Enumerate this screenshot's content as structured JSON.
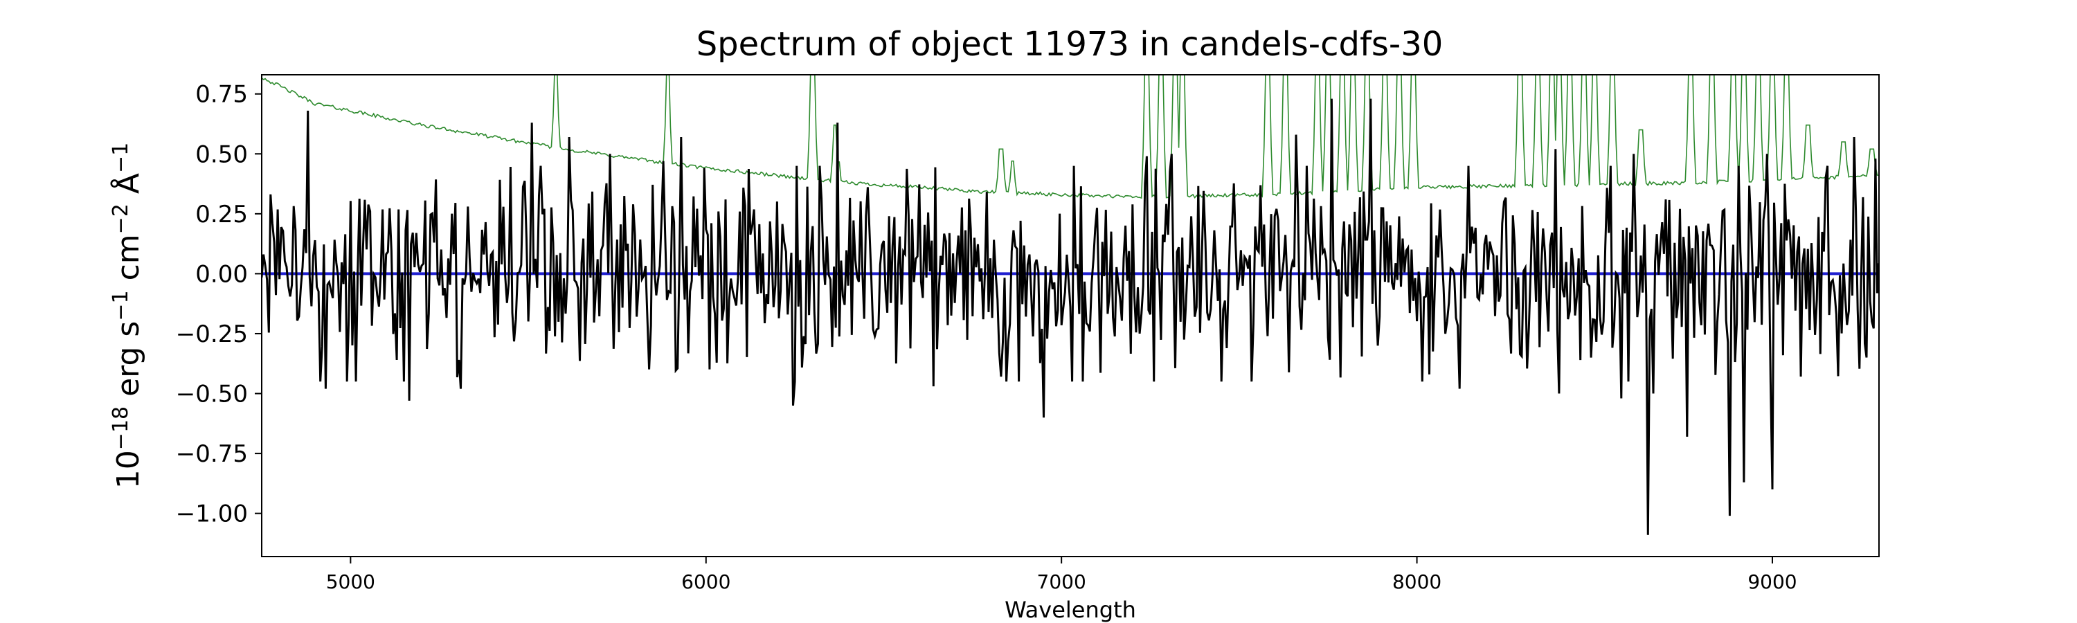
{
  "chart_data": {
    "type": "line",
    "title": "Spectrum of object 11973 in candels-cdfs-30",
    "xlabel": "Wavelength",
    "ylabel": {
      "prefix": "10",
      "exponent": "−18",
      "unit_text": " erg s",
      "unit_exp1": "−1",
      "unit_mid": " cm",
      "unit_exp2": "−2",
      "unit_end": " Å",
      "unit_exp3": "−1"
    },
    "xlim": [
      4750,
      9300
    ],
    "ylim": [
      -1.18,
      0.83
    ],
    "xticks": [
      5000,
      6000,
      7000,
      8000,
      9000
    ],
    "xtick_labels": [
      "5000",
      "6000",
      "7000",
      "8000",
      "9000"
    ],
    "yticks": [
      -1.0,
      -0.75,
      -0.5,
      -0.25,
      0.0,
      0.25,
      0.5,
      0.75
    ],
    "ytick_labels": [
      "−1.00",
      "−0.75",
      "−0.50",
      "−0.25",
      "0.00",
      "0.25",
      "0.50",
      "0.75"
    ],
    "grid": false,
    "colors": {
      "flux": "#000000",
      "error": "#2e8b2e",
      "model": "#1f1fd0"
    },
    "series": [
      {
        "role": "flux",
        "x_start": 4750,
        "x_step": 5,
        "n": 911,
        "base": 0.0,
        "noise_sigma": 0.2,
        "seed": 11973,
        "features": [
          {
            "x": 4880,
            "y": 0.68
          },
          {
            "x": 4930,
            "y": -0.48
          },
          {
            "x": 5165,
            "y": -0.53
          },
          {
            "x": 5310,
            "y": -0.48
          },
          {
            "x": 5510,
            "y": 0.63
          },
          {
            "x": 5615,
            "y": 0.57
          },
          {
            "x": 5730,
            "y": 0.5
          },
          {
            "x": 5880,
            "y": 0.47
          },
          {
            "x": 5930,
            "y": 0.57
          },
          {
            "x": 6245,
            "y": -0.55
          },
          {
            "x": 6370,
            "y": 0.63
          },
          {
            "x": 6640,
            "y": -0.47
          },
          {
            "x": 6950,
            "y": -0.6
          },
          {
            "x": 7240,
            "y": 0.49
          },
          {
            "x": 7310,
            "y": 0.5
          },
          {
            "x": 7660,
            "y": 0.58
          },
          {
            "x": 7760,
            "y": 0.73
          },
          {
            "x": 7870,
            "y": 0.73
          },
          {
            "x": 8120,
            "y": -0.48
          },
          {
            "x": 8390,
            "y": 0.52
          },
          {
            "x": 8400,
            "y": -0.5
          },
          {
            "x": 8575,
            "y": -0.52
          },
          {
            "x": 8610,
            "y": 0.5
          },
          {
            "x": 8650,
            "y": -1.09
          },
          {
            "x": 8665,
            "y": -0.5
          },
          {
            "x": 8760,
            "y": -0.68
          },
          {
            "x": 8880,
            "y": -1.01
          },
          {
            "x": 8920,
            "y": -0.87
          },
          {
            "x": 8985,
            "y": 0.5
          },
          {
            "x": 9000,
            "y": -0.9
          },
          {
            "x": 9150,
            "y": 0.4
          },
          {
            "x": 9230,
            "y": 0.57
          },
          {
            "x": 9290,
            "y": 0.48
          }
        ]
      },
      {
        "role": "error",
        "x_start": 4750,
        "x_step": 5,
        "n": 911,
        "continuum": [
          {
            "x": 4750,
            "y": 0.82
          },
          {
            "x": 4900,
            "y": 0.71
          },
          {
            "x": 5200,
            "y": 0.62
          },
          {
            "x": 5600,
            "y": 0.52
          },
          {
            "x": 6000,
            "y": 0.44
          },
          {
            "x": 6400,
            "y": 0.38
          },
          {
            "x": 6800,
            "y": 0.34
          },
          {
            "x": 7200,
            "y": 0.32
          },
          {
            "x": 7600,
            "y": 0.33
          },
          {
            "x": 8000,
            "y": 0.36
          },
          {
            "x": 8400,
            "y": 0.37
          },
          {
            "x": 8800,
            "y": 0.38
          },
          {
            "x": 9300,
            "y": 0.41
          }
        ],
        "sky_lines": [
          {
            "x": 5577,
            "y": 0.9
          },
          {
            "x": 5893,
            "y": 0.9
          },
          {
            "x": 6300,
            "y": 0.9
          },
          {
            "x": 6364,
            "y": 0.62
          },
          {
            "x": 6830,
            "y": 0.52
          },
          {
            "x": 6863,
            "y": 0.47
          },
          {
            "x": 7240,
            "y": 0.9
          },
          {
            "x": 7280,
            "y": 0.9
          },
          {
            "x": 7320,
            "y": 0.9
          },
          {
            "x": 7340,
            "y": 0.9
          },
          {
            "x": 7580,
            "y": 0.9
          },
          {
            "x": 7630,
            "y": 0.9
          },
          {
            "x": 7720,
            "y": 0.9
          },
          {
            "x": 7750,
            "y": 0.9
          },
          {
            "x": 7790,
            "y": 0.9
          },
          {
            "x": 7820,
            "y": 0.9
          },
          {
            "x": 7860,
            "y": 0.9
          },
          {
            "x": 7910,
            "y": 0.9
          },
          {
            "x": 7950,
            "y": 0.9
          },
          {
            "x": 7990,
            "y": 0.9
          },
          {
            "x": 8290,
            "y": 0.9
          },
          {
            "x": 8340,
            "y": 0.9
          },
          {
            "x": 8380,
            "y": 0.9
          },
          {
            "x": 8400,
            "y": 0.9
          },
          {
            "x": 8430,
            "y": 0.9
          },
          {
            "x": 8470,
            "y": 0.9
          },
          {
            "x": 8500,
            "y": 0.9
          },
          {
            "x": 8550,
            "y": 0.9
          },
          {
            "x": 8630,
            "y": 0.6
          },
          {
            "x": 8770,
            "y": 0.9
          },
          {
            "x": 8830,
            "y": 0.9
          },
          {
            "x": 8890,
            "y": 0.9
          },
          {
            "x": 8920,
            "y": 0.9
          },
          {
            "x": 8960,
            "y": 0.9
          },
          {
            "x": 9000,
            "y": 0.9
          },
          {
            "x": 9040,
            "y": 0.9
          },
          {
            "x": 9100,
            "y": 0.62
          },
          {
            "x": 9200,
            "y": 0.55
          },
          {
            "x": 9280,
            "y": 0.52
          }
        ],
        "seed": 42
      },
      {
        "role": "model",
        "x": [
          4750,
          9300
        ],
        "y": [
          0.0,
          0.0
        ]
      }
    ]
  }
}
